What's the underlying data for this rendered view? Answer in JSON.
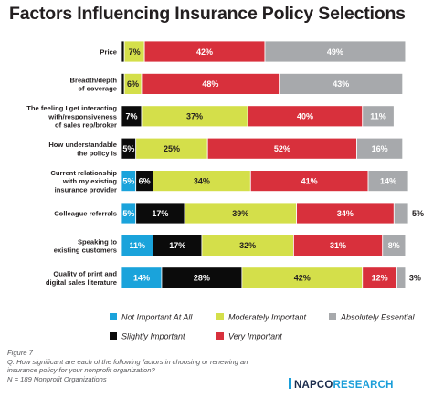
{
  "title": "Factors Influencing Insurance Policy Selections",
  "footer": {
    "figure": "Figure 7",
    "question": "Q: How significant are each of the following factors in choosing or renewing an insurance policy for your nonprofit organization?",
    "base": "N = 189 Nonprofit Organizations"
  },
  "logo": {
    "part1": "NAPCO",
    "part2": "RESEARCH"
  },
  "chart_data": {
    "type": "bar",
    "orientation": "horizontal",
    "stacked": true,
    "categories": [
      [
        "Price"
      ],
      [
        "Breadth/depth",
        "of coverage"
      ],
      [
        "The feeling I get interacting",
        "with/responsiveness",
        "of sales rep/broker"
      ],
      [
        "How understandable",
        "the policy is"
      ],
      [
        "Current relationship",
        "with my existing",
        "insurance provider"
      ],
      [
        "Colleague referrals"
      ],
      [
        "Speaking to",
        "existing customers"
      ],
      [
        "Quality of print and",
        "digital sales literature"
      ]
    ],
    "series": [
      {
        "name": "Not Important At All",
        "color": "#1aa3db",
        "values": [
          0,
          0,
          0,
          0,
          5,
          5,
          11,
          14
        ],
        "labels": [
          "",
          "",
          "",
          "",
          "5%",
          "5%",
          "11%",
          "14%"
        ]
      },
      {
        "name": "Slightly Important",
        "color": "#0b0b0b",
        "values": [
          1,
          1,
          7,
          5,
          6,
          17,
          17,
          28
        ],
        "labels": [
          "",
          "",
          "7%",
          "5%",
          "6%",
          "17%",
          "17%",
          "28%"
        ]
      },
      {
        "name": "Moderately Important",
        "color": "#d4df4a",
        "values": [
          7,
          6,
          37,
          25,
          34,
          39,
          32,
          42
        ],
        "labels": [
          "7%",
          "6%",
          "37%",
          "25%",
          "34%",
          "39%",
          "32%",
          "42%"
        ]
      },
      {
        "name": "Very Important",
        "color": "#d8303c",
        "values": [
          42,
          48,
          40,
          52,
          41,
          34,
          31,
          12
        ],
        "labels": [
          "42%",
          "48%",
          "40%",
          "52%",
          "41%",
          "34%",
          "31%",
          "12%"
        ]
      },
      {
        "name": "Absolutely Essential",
        "color": "#a7a9ac",
        "values": [
          49,
          43,
          11,
          16,
          14,
          5,
          8,
          3
        ],
        "labels": [
          "49%",
          "43%",
          "11%",
          "16%",
          "14%",
          "5%",
          "8%",
          "3%"
        ]
      }
    ],
    "legend_order": [
      "Not Important At All",
      "Moderately Important",
      "Absolutely Essential",
      "Slightly Important",
      "Very Important"
    ],
    "legend_placement": "bottom",
    "xlim": [
      0,
      100
    ],
    "grid": false
  }
}
